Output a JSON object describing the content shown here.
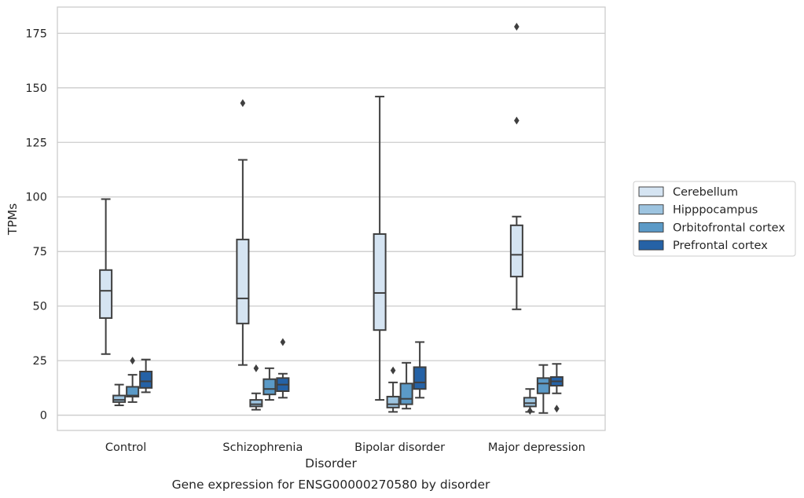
{
  "chart_data": {
    "type": "box",
    "title": "",
    "caption": "Gene expression for ENSG00000270580 by disorder",
    "xlabel": "Disorder",
    "ylabel": "TPMs",
    "ylim": [
      -7,
      187
    ],
    "yticks": [
      0,
      25,
      50,
      75,
      100,
      125,
      150,
      175
    ],
    "grid": true,
    "legend_position": "right",
    "categories": [
      "Control",
      "Schizophrenia",
      "Bipolar disorder",
      "Major depression"
    ],
    "series": [
      {
        "name": "Cerebellum",
        "color": "#d5e4f2",
        "boxes": [
          {
            "whisker_low": 28,
            "q1": 44.5,
            "median": 57,
            "q3": 66.5,
            "whisker_high": 99,
            "outliers": []
          },
          {
            "whisker_low": 23,
            "q1": 42,
            "median": 53.5,
            "q3": 80.5,
            "whisker_high": 117,
            "outliers": [
              143
            ]
          },
          {
            "whisker_low": 7,
            "q1": 39,
            "median": 56,
            "q3": 83,
            "whisker_high": 146,
            "outliers": []
          },
          {
            "whisker_low": 48.5,
            "q1": 63.5,
            "median": 73.5,
            "q3": 87,
            "whisker_high": 91,
            "outliers": [
              135,
              178
            ]
          }
        ]
      },
      {
        "name": "Hipppocampus",
        "color": "#9dc4e0",
        "boxes": [
          {
            "whisker_low": 4.5,
            "q1": 6,
            "median": 7,
            "q3": 9,
            "whisker_high": 14,
            "outliers": []
          },
          {
            "whisker_low": 2.5,
            "q1": 4,
            "median": 5,
            "q3": 7,
            "whisker_high": 10,
            "outliers": [
              21.5
            ]
          },
          {
            "whisker_low": 1.5,
            "q1": 3.5,
            "median": 5,
            "q3": 8.5,
            "whisker_high": 15,
            "outliers": [
              20.5
            ]
          },
          {
            "whisker_low": 1.5,
            "q1": 4,
            "median": 5.5,
            "q3": 8,
            "whisker_high": 12,
            "outliers": [
              2
            ]
          }
        ]
      },
      {
        "name": "Orbitofrontal cortex",
        "color": "#5b9ac7",
        "boxes": [
          {
            "whisker_low": 6,
            "q1": 8.5,
            "median": 9,
            "q3": 13,
            "whisker_high": 18.5,
            "outliers": [
              25
            ]
          },
          {
            "whisker_low": 7,
            "q1": 9.5,
            "median": 12,
            "q3": 16.5,
            "whisker_high": 21.5,
            "outliers": []
          },
          {
            "whisker_low": 3,
            "q1": 5,
            "median": 7.5,
            "q3": 14.5,
            "whisker_high": 24,
            "outliers": []
          },
          {
            "whisker_low": 1,
            "q1": 10,
            "median": 14.5,
            "q3": 17,
            "whisker_high": 23,
            "outliers": []
          }
        ]
      },
      {
        "name": "Prefrontal cortex",
        "color": "#2562a6",
        "boxes": [
          {
            "whisker_low": 10.5,
            "q1": 12.5,
            "median": 15.5,
            "q3": 20,
            "whisker_high": 25.5,
            "outliers": []
          },
          {
            "whisker_low": 8,
            "q1": 11,
            "median": 14,
            "q3": 17,
            "whisker_high": 19,
            "outliers": [
              33.5
            ]
          },
          {
            "whisker_low": 8,
            "q1": 12,
            "median": 15,
            "q3": 22,
            "whisker_high": 33.5,
            "outliers": []
          },
          {
            "whisker_low": 10,
            "q1": 13.5,
            "median": 15.5,
            "q3": 17.5,
            "whisker_high": 23.5,
            "outliers": [
              3
            ]
          }
        ]
      }
    ]
  }
}
